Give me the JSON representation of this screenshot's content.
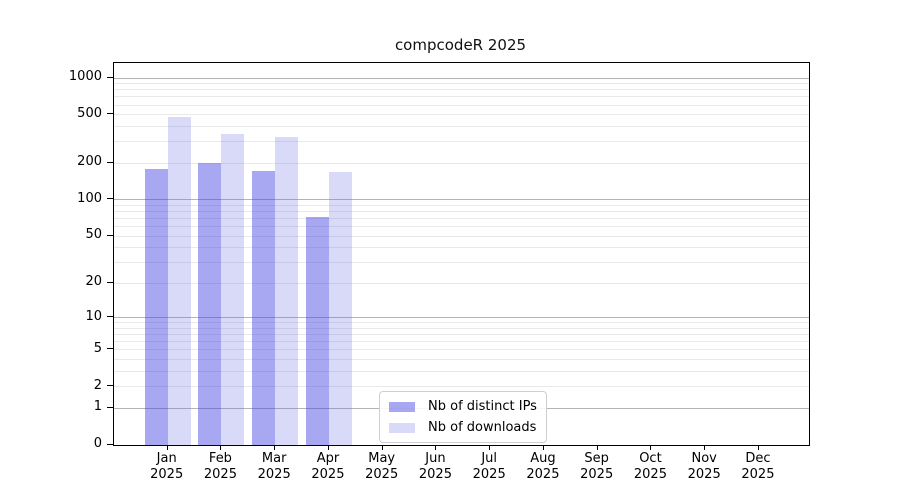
{
  "chart_data": {
    "type": "bar",
    "title": "compcodeR 2025",
    "year_label": "2025",
    "categories": [
      "Jan",
      "Feb",
      "Mar",
      "Apr",
      "May",
      "Jun",
      "Jul",
      "Aug",
      "Sep",
      "Oct",
      "Nov",
      "Dec"
    ],
    "series": [
      {
        "name": "Nb of distinct IPs",
        "color": "rgba(62,62,226,0.45)",
        "color_hex_on_white": "#a8a8f2",
        "values": [
          180,
          200,
          173,
          72,
          null,
          null,
          null,
          null,
          null,
          null,
          null,
          null
        ]
      },
      {
        "name": "Nb of downloads",
        "color": "rgba(103,103,227,0.25)",
        "color_hex_on_white": "#d9d9f8",
        "values": [
          480,
          345,
          330,
          170,
          null,
          null,
          null,
          null,
          null,
          null,
          null,
          null
        ]
      }
    ],
    "yticks": [
      0,
      1,
      2,
      5,
      10,
      20,
      50,
      100,
      200,
      500,
      1000
    ],
    "major_gridlines": [
      1,
      10,
      100,
      1000
    ],
    "yscale": "log10(value+1)",
    "ylim": [
      0,
      1330
    ],
    "grid": "horizontal, minor lines at 2-9 per decade",
    "legend_position": "inside lower-left-of-center",
    "xlabel": "",
    "ylabel": ""
  },
  "colors": {
    "bar_distinct_ips": "#a8a8f2",
    "bar_downloads": "#d9d9f8",
    "major_grid": "#b4b4b4",
    "minor_grid": "#e9e9e9",
    "spine": "#000000",
    "background": "#ffffff"
  }
}
